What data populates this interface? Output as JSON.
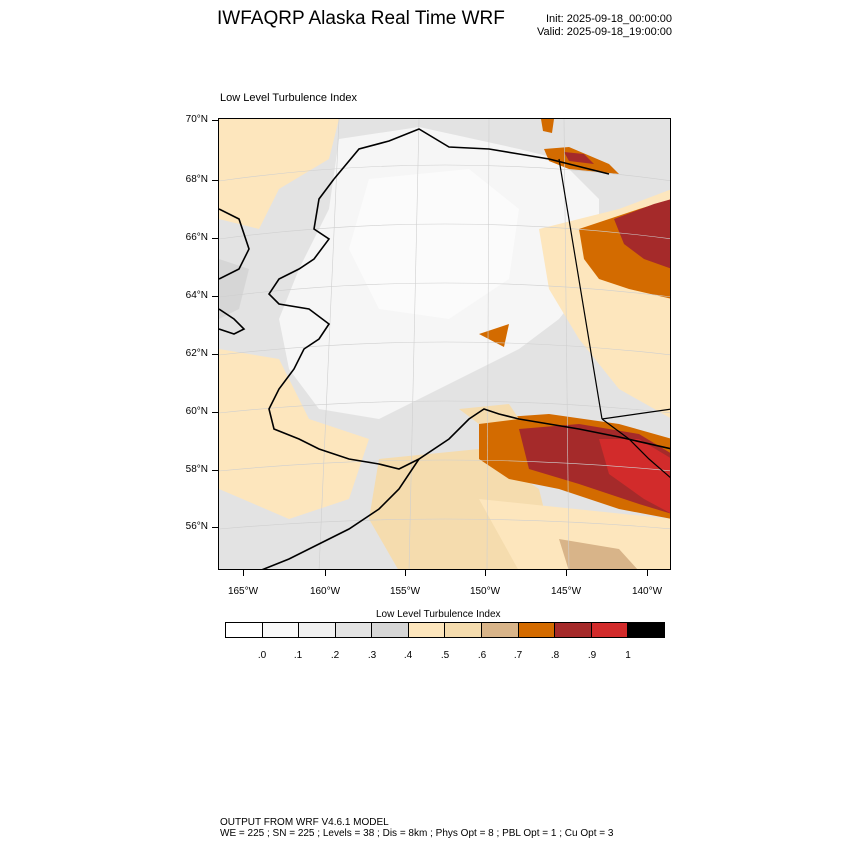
{
  "title": "IWFAQRP Alaska Real Time WRF",
  "init": "Init: 2025-09-18_00:00:00",
  "valid": "Valid: 2025-09-18_19:00:00",
  "map_label": "Low Level Turbulence Index",
  "lat_labels": [
    "70°N",
    "68°N",
    "66°N",
    "64°N",
    "62°N",
    "60°N",
    "58°N",
    "56°N"
  ],
  "lon_labels": [
    "165°W",
    "160°W",
    "155°W",
    "150°W",
    "145°W",
    "140°W"
  ],
  "colorbar": {
    "title": "Low Level Turbulence Index",
    "colors": [
      "#ffffff",
      "#f9f9f9",
      "#f0f0f0",
      "#e3e3e3",
      "#d6d6d6",
      "#fde6bd",
      "#f5dcae",
      "#d8b489",
      "#d36b00",
      "#a52a2a",
      "#d22b2b",
      "#000000"
    ],
    "labels": [
      ".0",
      ".1",
      ".2",
      ".3",
      ".4",
      ".5",
      ".6",
      ".7",
      ".8",
      ".9",
      "1"
    ]
  },
  "footer_line1": "OUTPUT FROM WRF V4.6.1 MODEL",
  "footer_line2": "WE = 225 ; SN = 225 ; Levels = 38 ; Dis = 8km ; Phys Opt = 8 ; PBL Opt = 1 ; Cu Opt = 3"
}
